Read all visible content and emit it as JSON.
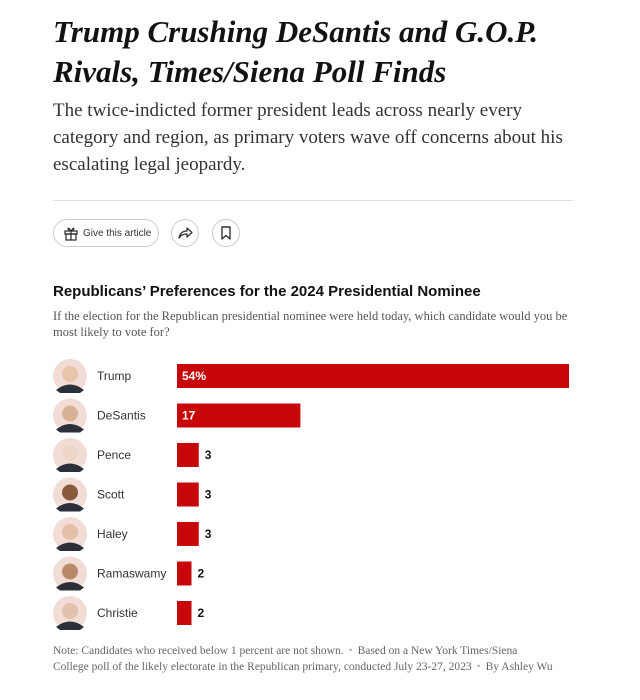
{
  "header": {
    "title": "Trump Crushing DeSantis and G.O.P. Rivals, Times/Siena Poll Finds",
    "summary": "The twice-indicted former president leads across nearly every category and region, as primary voters wave off concerns about his escalating legal jeopardy.",
    "gift_button": "Give this article"
  },
  "chart_data": {
    "type": "bar",
    "orientation": "horizontal",
    "title": "Republicans’ Preferences for the 2024 Presidential Nominee",
    "subtitle": "If the election for the Republican presidential nominee were held today, which candidate would you be most likely to vote for?",
    "categories": [
      "Trump",
      "DeSantis",
      "Pence",
      "Scott",
      "Haley",
      "Ramaswamy",
      "Christie"
    ],
    "values": [
      54,
      17,
      3,
      3,
      3,
      2,
      2
    ],
    "value_labels": [
      "54%",
      "17",
      "3",
      "3",
      "3",
      "2",
      "2"
    ],
    "color": "#c8070b"
  },
  "footer": {
    "note": "Note: Candidates who received below 1 percent are not shown.",
    "source": "Based on a New York Times/Siena College poll of the likely electorate in the Republican primary, conducted July 23-27, 2023",
    "byline": "By Ashley Wu"
  }
}
